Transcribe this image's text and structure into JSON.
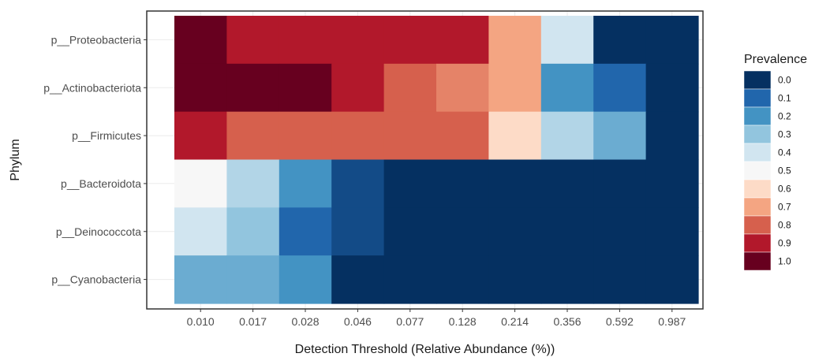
{
  "chart_data": {
    "type": "heatmap",
    "xlabel": "Detection Threshold (Relative Abundance (%))",
    "ylabel": "Phylum",
    "x_categories": [
      "0.010",
      "0.017",
      "0.028",
      "0.046",
      "0.077",
      "0.128",
      "0.214",
      "0.356",
      "0.592",
      "0.987"
    ],
    "y_categories": [
      "p__Proteobacteria",
      "p__Actinobacteriota",
      "p__Firmicutes",
      "p__Bacteroidota",
      "p__Deinococcota",
      "p__Cyanobacteria"
    ],
    "values": [
      [
        1.0,
        0.9,
        0.9,
        0.9,
        0.9,
        0.9,
        0.7,
        0.4,
        0.0,
        0.0
      ],
      [
        1.0,
        1.0,
        1.0,
        0.9,
        0.8,
        0.75,
        0.7,
        0.2,
        0.1,
        0.0
      ],
      [
        0.9,
        0.8,
        0.8,
        0.8,
        0.8,
        0.8,
        0.6,
        0.35,
        0.25,
        0.0
      ],
      [
        0.5,
        0.35,
        0.2,
        0.05,
        0.0,
        0.0,
        0.0,
        0.0,
        0.0,
        0.0
      ],
      [
        0.4,
        0.3,
        0.1,
        0.05,
        0.0,
        0.0,
        0.0,
        0.0,
        0.0,
        0.0
      ],
      [
        0.25,
        0.25,
        0.2,
        0.0,
        0.0,
        0.0,
        0.0,
        0.0,
        0.0,
        0.0
      ]
    ],
    "legend": {
      "title": "Prevalence",
      "labels": [
        "0.0",
        "0.1",
        "0.2",
        "0.3",
        "0.4",
        "0.5",
        "0.6",
        "0.7",
        "0.8",
        "0.9",
        "1.0"
      ],
      "colors": [
        "#053061",
        "#2166ac",
        "#4393c3",
        "#92c5de",
        "#d1e5f0",
        "#f7f7f7",
        "#fddbc7",
        "#f4a582",
        "#d6604d",
        "#b2182b",
        "#67001f"
      ],
      "placement": "right"
    },
    "grid": true
  }
}
